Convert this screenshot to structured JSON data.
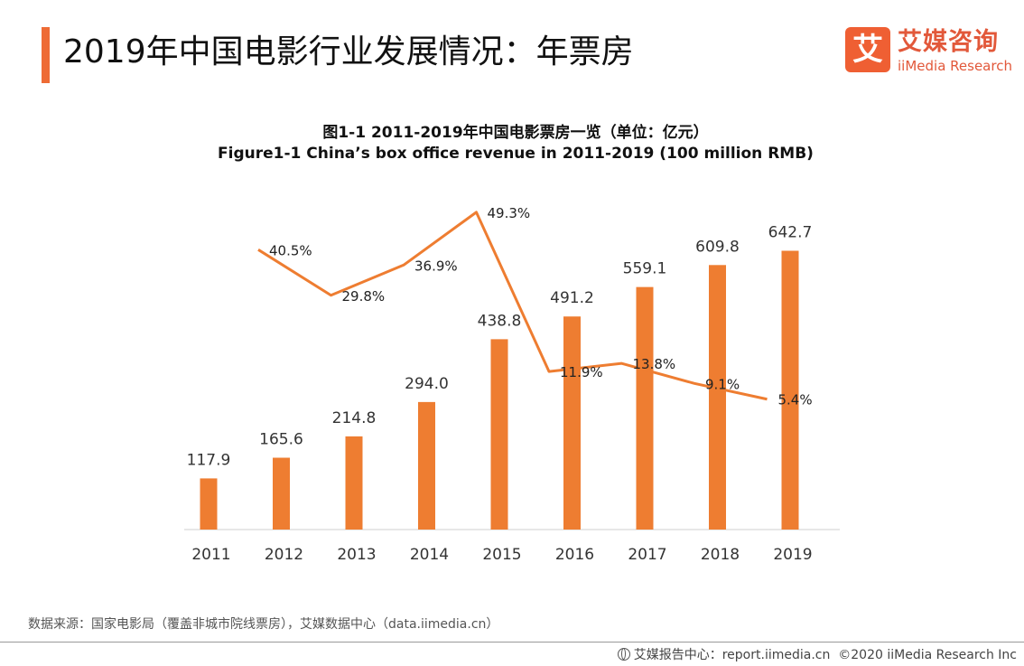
{
  "header": {
    "title": "2019年中国电影行业发展情况：年票房"
  },
  "logo": {
    "mark": "艾",
    "cn": "艾媒咨询",
    "en": "iiMedia Research"
  },
  "chart_data": {
    "type": "bar",
    "title": "图1-1 2011-2019年中国电影票房一览（单位：亿元）",
    "subtitle": "Figure1-1 China’s box office revenue in 2011-2019 (100 million RMB)",
    "categories": [
      "2011",
      "2012",
      "2013",
      "2014",
      "2015",
      "2016",
      "2017",
      "2018",
      "2019"
    ],
    "series": [
      {
        "name": "票房",
        "type": "bar",
        "values": [
          117.9,
          165.6,
          214.8,
          294.0,
          438.8,
          491.2,
          559.1,
          609.8,
          642.7
        ],
        "labels": [
          "117.9",
          "165.6",
          "214.8",
          "294.0",
          "438.8",
          "491.2",
          "559.1",
          "609.8",
          "642.7"
        ],
        "color": "#ee7d31"
      },
      {
        "name": "增长率",
        "type": "line",
        "values": [
          null,
          40.5,
          29.8,
          36.9,
          49.3,
          11.9,
          13.8,
          9.1,
          5.4
        ],
        "labels": [
          "",
          "40.5%",
          "29.8%",
          "36.9%",
          "49.3%",
          "11.9%",
          "13.8%",
          "9.1%",
          "5.4%"
        ],
        "color": "#ee7d31"
      }
    ],
    "ylim": [
      0,
      800
    ],
    "ylim_secondary": [
      -25,
      55
    ],
    "xlabel": "",
    "ylabel": "",
    "grid": false
  },
  "footer": {
    "source": "数据来源：国家电影局（覆盖非城市院线票房），艾媒数据中心（data.iimedia.cn）",
    "report_label": "艾媒报告中心：report.iimedia.cn",
    "copyright": "©2020  iiMedia Research  Inc"
  }
}
